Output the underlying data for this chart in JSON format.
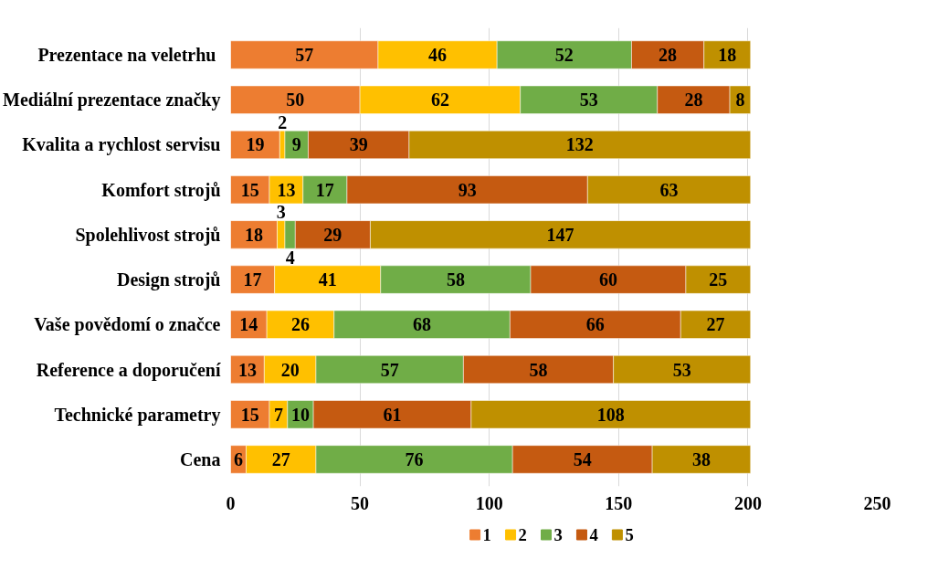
{
  "chart_data": {
    "type": "bar",
    "orientation": "horizontal",
    "stacked": true,
    "data_labels": true,
    "legend": "bottom",
    "grid": "x",
    "categories": [
      "Prezentace na veletrhu ",
      "Mediální prezentace značky",
      "Kvalita a rychlost servisu",
      "Komfort strojů",
      "Spolehlivost strojů",
      "Design strojů",
      "Vaše povědomí o značce",
      "Reference a doporučení",
      "Technické parametry",
      "Cena"
    ],
    "xlim": [
      0,
      250
    ],
    "xticks": [
      0,
      50,
      100,
      150,
      200,
      250
    ],
    "series": [
      {
        "name": "1",
        "color": "#ed7d31",
        "values": [
          57,
          50,
          19,
          15,
          18,
          17,
          14,
          13,
          15,
          6
        ]
      },
      {
        "name": "2",
        "color": "#ffc000",
        "values": [
          46,
          62,
          2,
          13,
          3,
          41,
          26,
          20,
          7,
          27
        ]
      },
      {
        "name": "3",
        "color": "#70ad47",
        "values": [
          52,
          53,
          9,
          17,
          4,
          58,
          68,
          57,
          10,
          76
        ]
      },
      {
        "name": "4",
        "color": "#c55a11",
        "values": [
          28,
          28,
          39,
          93,
          29,
          60,
          66,
          58,
          61,
          54
        ]
      },
      {
        "name": "5",
        "color": "#bf9000",
        "values": [
          18,
          8,
          132,
          63,
          147,
          25,
          27,
          53,
          108,
          38
        ]
      }
    ]
  }
}
